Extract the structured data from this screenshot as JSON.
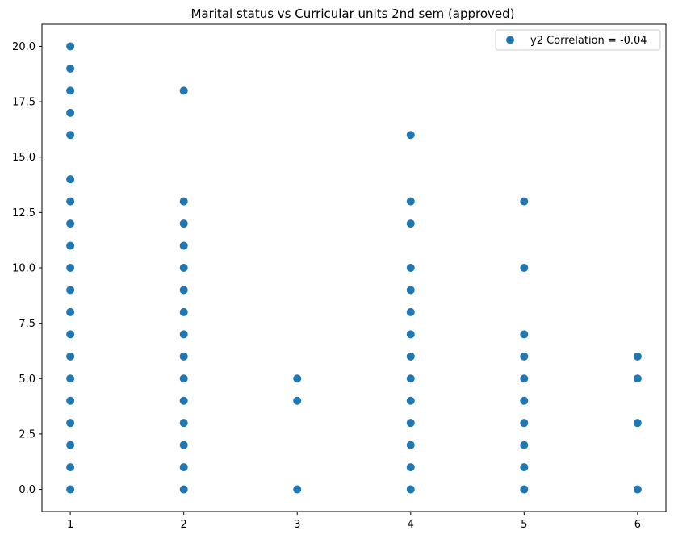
{
  "chart_data": {
    "type": "scatter",
    "title": "Marital status vs Curricular units 2nd sem (approved)",
    "xlabel": "",
    "ylabel": "",
    "xlim": [
      0.75,
      6.25
    ],
    "ylim": [
      -1.0,
      21.0
    ],
    "x_ticks": [
      "1",
      "2",
      "3",
      "4",
      "5",
      "6"
    ],
    "y_ticks": [
      "0.0",
      "2.5",
      "5.0",
      "7.5",
      "10.0",
      "12.5",
      "15.0",
      "17.5",
      "20.0"
    ],
    "grid": false,
    "legend_position": "upper right",
    "color": "#1f77b4",
    "series": [
      {
        "name": "y2 Correlation = -0.04",
        "points": [
          [
            1,
            0
          ],
          [
            1,
            1
          ],
          [
            1,
            2
          ],
          [
            1,
            3
          ],
          [
            1,
            4
          ],
          [
            1,
            5
          ],
          [
            1,
            6
          ],
          [
            1,
            7
          ],
          [
            1,
            8
          ],
          [
            1,
            9
          ],
          [
            1,
            10
          ],
          [
            1,
            11
          ],
          [
            1,
            12
          ],
          [
            1,
            13
          ],
          [
            1,
            14
          ],
          [
            1,
            16
          ],
          [
            1,
            17
          ],
          [
            1,
            18
          ],
          [
            1,
            19
          ],
          [
            1,
            20
          ],
          [
            2,
            0
          ],
          [
            2,
            1
          ],
          [
            2,
            2
          ],
          [
            2,
            3
          ],
          [
            2,
            4
          ],
          [
            2,
            5
          ],
          [
            2,
            6
          ],
          [
            2,
            7
          ],
          [
            2,
            8
          ],
          [
            2,
            9
          ],
          [
            2,
            10
          ],
          [
            2,
            11
          ],
          [
            2,
            12
          ],
          [
            2,
            13
          ],
          [
            2,
            18
          ],
          [
            3,
            0
          ],
          [
            3,
            4
          ],
          [
            3,
            5
          ],
          [
            4,
            0
          ],
          [
            4,
            1
          ],
          [
            4,
            2
          ],
          [
            4,
            3
          ],
          [
            4,
            4
          ],
          [
            4,
            5
          ],
          [
            4,
            6
          ],
          [
            4,
            7
          ],
          [
            4,
            8
          ],
          [
            4,
            9
          ],
          [
            4,
            10
          ],
          [
            4,
            12
          ],
          [
            4,
            13
          ],
          [
            4,
            16
          ],
          [
            5,
            0
          ],
          [
            5,
            1
          ],
          [
            5,
            2
          ],
          [
            5,
            3
          ],
          [
            5,
            4
          ],
          [
            5,
            5
          ],
          [
            5,
            6
          ],
          [
            5,
            7
          ],
          [
            5,
            10
          ],
          [
            5,
            13
          ],
          [
            6,
            0
          ],
          [
            6,
            3
          ],
          [
            6,
            5
          ],
          [
            6,
            6
          ]
        ]
      }
    ]
  }
}
